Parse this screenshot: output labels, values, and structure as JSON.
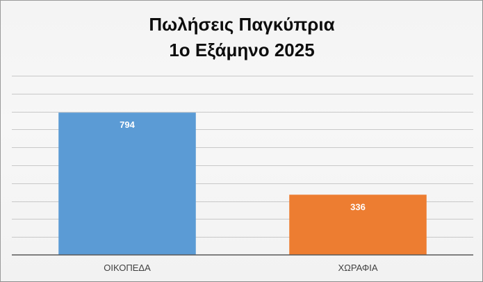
{
  "chart_data": {
    "type": "bar",
    "title_lines": [
      "Πωλήσεις Παγκύπρια",
      "1ο Εξάμηνο 2025"
    ],
    "categories": [
      "ΟΙΚΟΠΕΔΑ",
      "ΧΩΡΑΦΙΑ"
    ],
    "values": [
      794,
      336
    ],
    "data_labels": [
      "794",
      "336"
    ],
    "colors": [
      "#5b9bd5",
      "#ed7d31"
    ],
    "xlabel": "",
    "ylabel": "",
    "ylim": [
      0,
      1000
    ],
    "grid_step": 100,
    "grid": true,
    "y_tick_labels_visible": false,
    "legend": "none"
  }
}
